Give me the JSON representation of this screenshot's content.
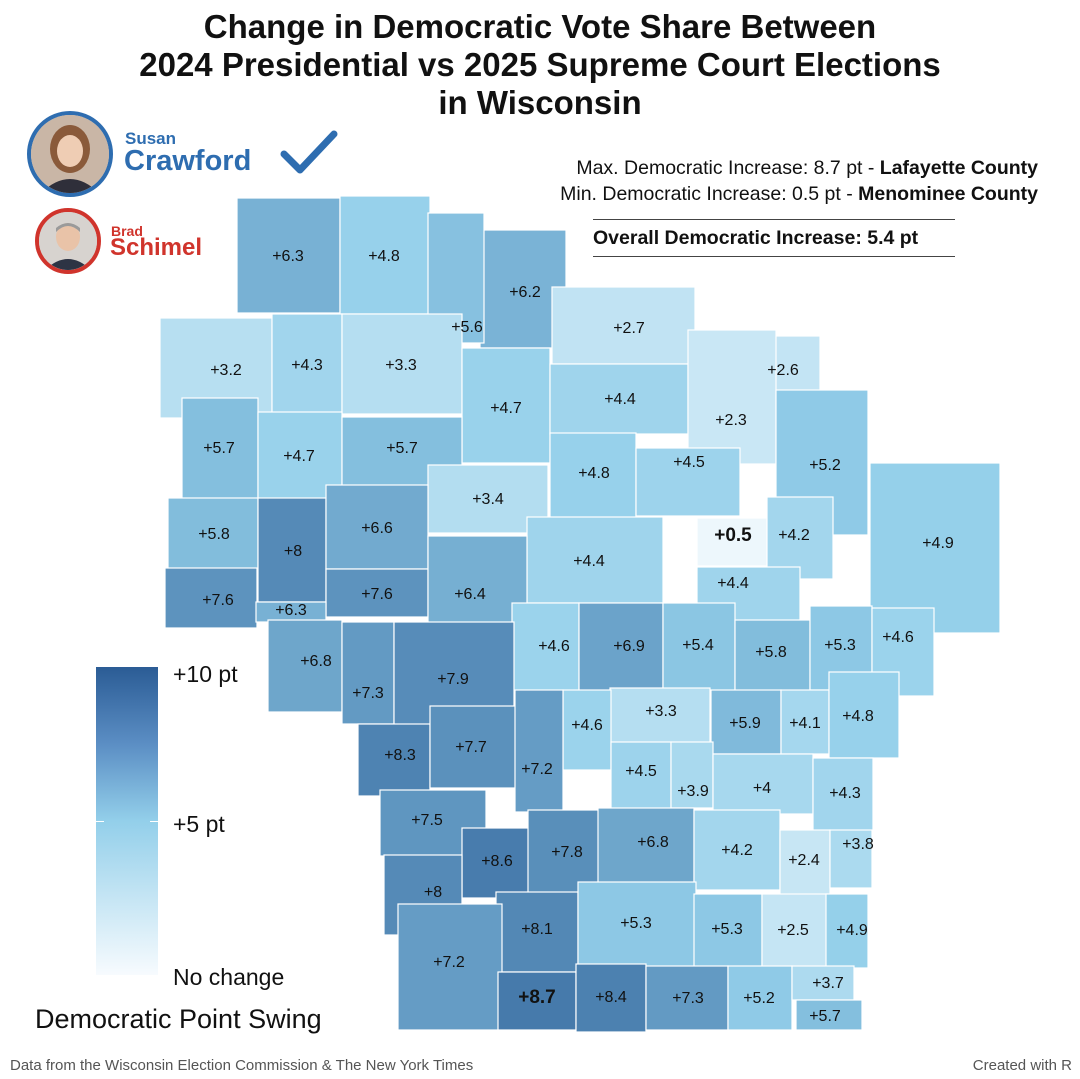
{
  "title": {
    "line1": "Change in Democratic Vote Share Between",
    "line2": "2024 Presidential vs 2025 Supreme Court Elections",
    "line3": "in Wisconsin"
  },
  "candidates": {
    "winner": {
      "first": "Susan",
      "last": "Crawford",
      "color": "#2e6db0",
      "mark": "check-icon"
    },
    "loser": {
      "first": "Brad",
      "last": "Schimel",
      "color": "#d0342c"
    }
  },
  "stats": {
    "max_prefix": "Max. Democratic Increase: 8.7 pt - ",
    "max_county": "Lafayette County",
    "min_prefix": "Min. Democratic Increase: 0.5 pt - ",
    "min_county": "Menominee County",
    "overall": "Overall Democratic Increase: 5.4 pt"
  },
  "legend": {
    "title": "Democratic Point Swing",
    "max_label": "+10 pt",
    "mid_label": "+5 pt",
    "min_label": "No change",
    "scale": [
      0,
      5,
      10
    ],
    "colors": [
      "#f7fbfe",
      "#93cfea",
      "#2b5c95"
    ]
  },
  "footer": {
    "source": "Data from the Wisconsin Election Commission & The New York Times",
    "credit": "Created with R"
  },
  "counties": [
    {
      "label": "+6.3",
      "swing": 6.3
    },
    {
      "label": "+4.8",
      "swing": 4.8
    },
    {
      "label": "+6.2",
      "swing": 6.2
    },
    {
      "label": "+5.6",
      "swing": 5.6
    },
    {
      "label": "+2.7",
      "swing": 2.7
    },
    {
      "label": "+3.2",
      "swing": 3.2
    },
    {
      "label": "+4.3",
      "swing": 4.3
    },
    {
      "label": "+3.3",
      "swing": 3.3
    },
    {
      "label": "+2.6",
      "swing": 2.6
    },
    {
      "label": "+4.7",
      "swing": 4.7
    },
    {
      "label": "+4.4",
      "swing": 4.4
    },
    {
      "label": "+2.3",
      "swing": 2.3
    },
    {
      "label": "+5.7",
      "swing": 5.7
    },
    {
      "label": "+4.7",
      "swing": 4.7
    },
    {
      "label": "+5.7",
      "swing": 5.7
    },
    {
      "label": "+5.2",
      "swing": 5.2
    },
    {
      "label": "+4.8",
      "swing": 4.8
    },
    {
      "label": "+4.5",
      "swing": 4.5
    },
    {
      "label": "+3.4",
      "swing": 3.4
    },
    {
      "label": "+5.8",
      "swing": 5.8
    },
    {
      "label": "+8",
      "swing": 8.0
    },
    {
      "label": "+6.6",
      "swing": 6.6
    },
    {
      "label": "+0.5",
      "swing": 0.5
    },
    {
      "label": "+4.2",
      "swing": 4.2
    },
    {
      "label": "+4.9",
      "swing": 4.9
    },
    {
      "label": "+4.4",
      "swing": 4.4
    },
    {
      "label": "+7.6",
      "swing": 7.6
    },
    {
      "label": "+7.6",
      "swing": 7.6
    },
    {
      "label": "+6.4",
      "swing": 6.4
    },
    {
      "label": "+4.4",
      "swing": 4.4
    },
    {
      "label": "+6.3",
      "swing": 6.3
    },
    {
      "label": "+4.6",
      "swing": 4.6
    },
    {
      "label": "+6.9",
      "swing": 6.9
    },
    {
      "label": "+5.4",
      "swing": 5.4
    },
    {
      "label": "+5.8",
      "swing": 5.8
    },
    {
      "label": "+5.3",
      "swing": 5.3
    },
    {
      "label": "+4.6",
      "swing": 4.6
    },
    {
      "label": "+6.8",
      "swing": 6.8
    },
    {
      "label": "+7.3",
      "swing": 7.3
    },
    {
      "label": "+7.9",
      "swing": 7.9
    },
    {
      "label": "+3.3",
      "swing": 3.3
    },
    {
      "label": "+4.6",
      "swing": 4.6
    },
    {
      "label": "+5.9",
      "swing": 5.9
    },
    {
      "label": "+4.1",
      "swing": 4.1
    },
    {
      "label": "+4.8",
      "swing": 4.8
    },
    {
      "label": "+8.3",
      "swing": 8.3
    },
    {
      "label": "+7.7",
      "swing": 7.7
    },
    {
      "label": "+7.2",
      "swing": 7.2
    },
    {
      "label": "+4.5",
      "swing": 4.5
    },
    {
      "label": "+3.9",
      "swing": 3.9
    },
    {
      "label": "+4",
      "swing": 4.0
    },
    {
      "label": "+4.3",
      "swing": 4.3
    },
    {
      "label": "+7.5",
      "swing": 7.5
    },
    {
      "label": "+8.6",
      "swing": 8.6
    },
    {
      "label": "+7.8",
      "swing": 7.8
    },
    {
      "label": "+6.8",
      "swing": 6.8
    },
    {
      "label": "+4.2",
      "swing": 4.2
    },
    {
      "label": "+2.4",
      "swing": 2.4
    },
    {
      "label": "+3.8",
      "swing": 3.8
    },
    {
      "label": "+8",
      "swing": 8.0
    },
    {
      "label": "+8.1",
      "swing": 8.1
    },
    {
      "label": "+5.3",
      "swing": 5.3
    },
    {
      "label": "+5.3",
      "swing": 5.3
    },
    {
      "label": "+2.5",
      "swing": 2.5
    },
    {
      "label": "+4.9",
      "swing": 4.9
    },
    {
      "label": "+7.2",
      "swing": 7.2
    },
    {
      "label": "+8.7",
      "swing": 8.7
    },
    {
      "label": "+8.4",
      "swing": 8.4
    },
    {
      "label": "+7.3",
      "swing": 7.3
    },
    {
      "label": "+5.2",
      "swing": 5.2
    },
    {
      "label": "+3.7",
      "swing": 3.7
    },
    {
      "label": "+5.7",
      "swing": 5.7
    }
  ],
  "highlight": [
    "+0.5",
    "+8.7"
  ]
}
